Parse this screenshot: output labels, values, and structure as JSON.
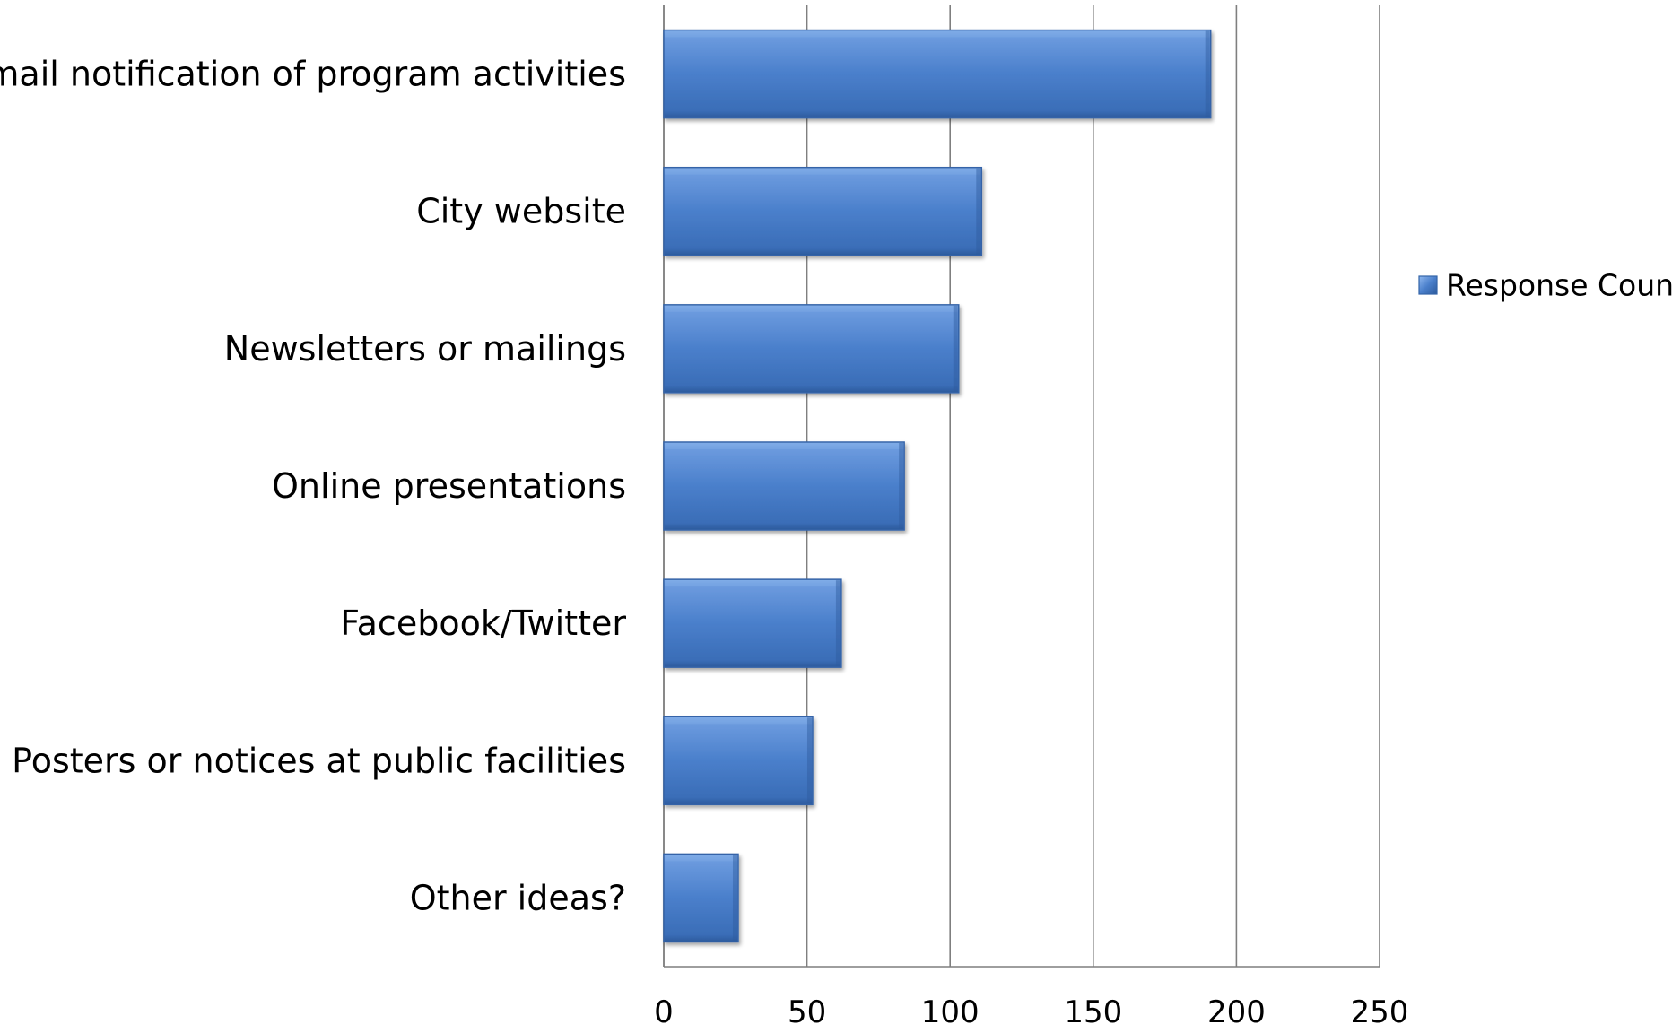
{
  "chart_data": {
    "type": "bar",
    "orientation": "horizontal",
    "categories": [
      "E-mail notification of program activities",
      "City website",
      "Newsletters or mailings",
      "Online presentations",
      "Facebook/Twitter",
      "Posters or notices at public facilities",
      "Other ideas?"
    ],
    "series": [
      {
        "name": "Response Count",
        "values": [
          191,
          111,
          103,
          84,
          62,
          52,
          26
        ]
      }
    ],
    "xlim": [
      0,
      250
    ],
    "xticks": [
      "0",
      "50",
      "100",
      "150",
      "200",
      "250"
    ],
    "grid": "vertical",
    "legend_position": "right",
    "colors": {
      "bar": "#4a7fcb",
      "bar_light": "#78a6e4",
      "bar_dark": "#2e5c9e",
      "bar_edge": "#3464a8",
      "grid": "#7f7f7f"
    }
  }
}
